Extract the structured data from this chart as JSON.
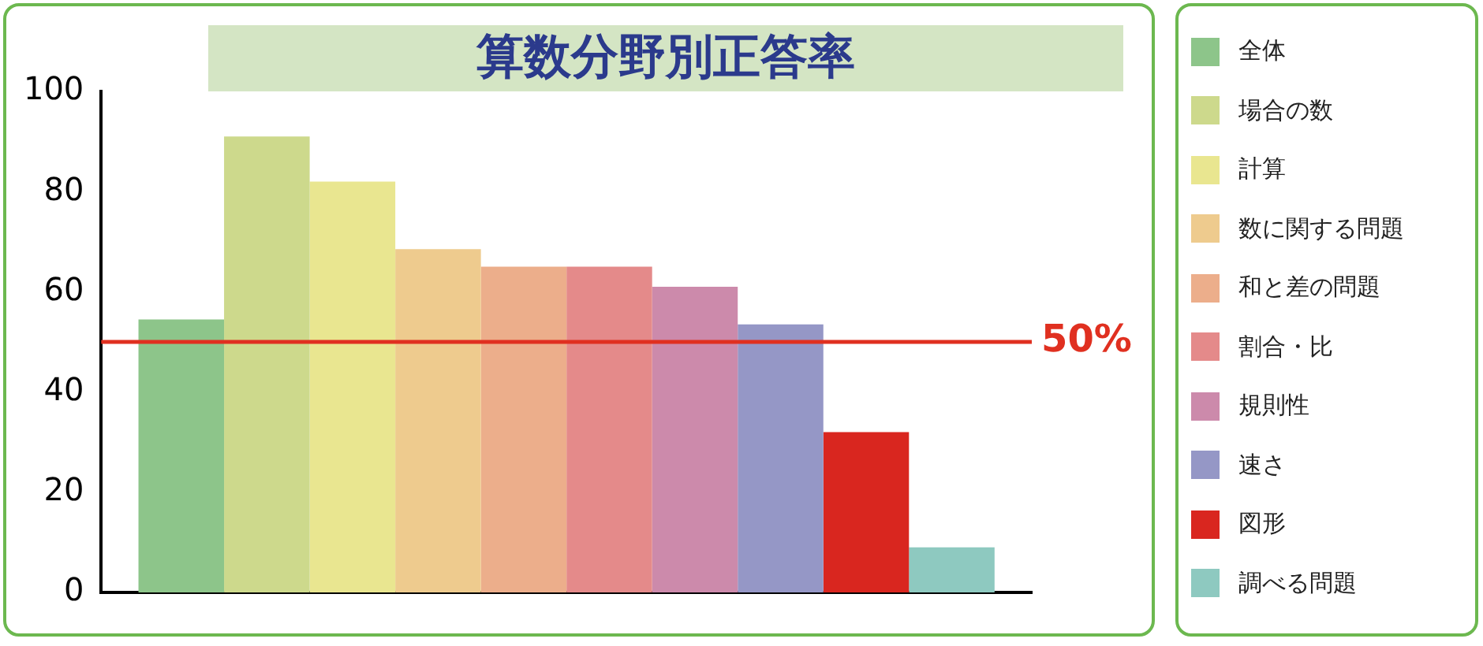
{
  "chart_data": {
    "type": "bar",
    "title": "算数分野別正答率",
    "categories": [
      null
    ],
    "series": [
      {
        "name": "全体",
        "color": "#8dc58a",
        "values": [
          54.5
        ]
      },
      {
        "name": "場合の数",
        "color": "#cdd98c",
        "values": [
          91
        ]
      },
      {
        "name": "計算",
        "color": "#e9e690",
        "values": [
          82
        ]
      },
      {
        "name": "数に関する問題",
        "color": "#eecb8e",
        "values": [
          68.5
        ]
      },
      {
        "name": "和と差の問題",
        "color": "#ecae8b",
        "values": [
          65
        ]
      },
      {
        "name": "割合・比",
        "color": "#e48a8a",
        "values": [
          65
        ]
      },
      {
        "name": "規則性",
        "color": "#cc8aab",
        "values": [
          61
        ]
      },
      {
        "name": "速さ",
        "color": "#9597c6",
        "values": [
          53.5
        ]
      },
      {
        "name": "図形",
        "color": "#d9261f",
        "values": [
          32
        ]
      },
      {
        "name": "調べる問題",
        "color": "#8ec9c0",
        "values": [
          9
        ]
      }
    ],
    "ylim": [
      0,
      100
    ],
    "yticks": [
      0,
      20,
      40,
      60,
      80,
      100
    ],
    "grid": false,
    "legend": "right",
    "tick_labels": "y",
    "ref_lines": [
      {
        "axis": "y",
        "value": 50,
        "label": "50%",
        "color": "#e03020"
      }
    ]
  }
}
